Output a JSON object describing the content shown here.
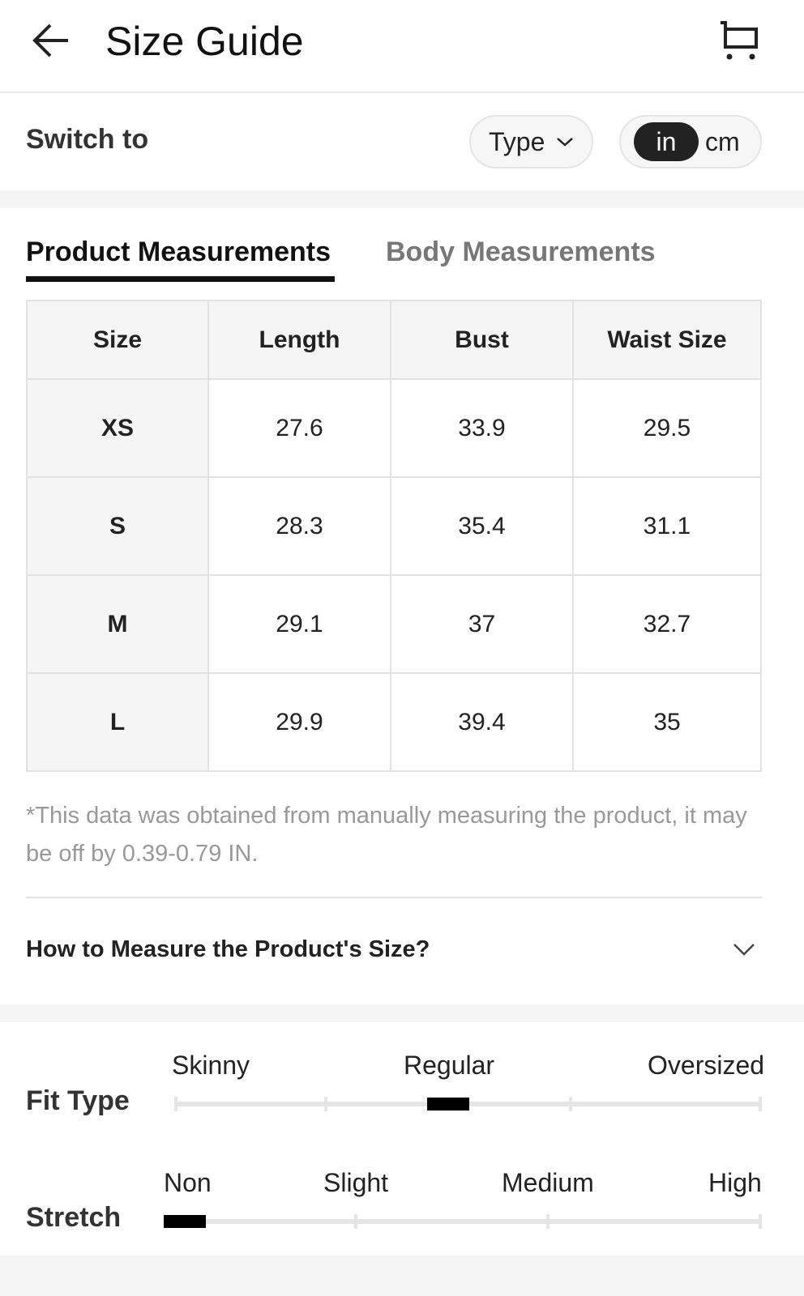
{
  "header": {
    "title": "Size Guide",
    "back_icon": "arrow-left-icon",
    "cart_icon": "cart-icon"
  },
  "switch": {
    "label": "Switch to",
    "type_label": "Type",
    "units": [
      "in",
      "cm"
    ],
    "selected_unit": "in"
  },
  "tabs": [
    {
      "label": "Product Measurements",
      "active": true
    },
    {
      "label": "Body Measurements",
      "active": false
    }
  ],
  "table": {
    "columns": [
      "Size",
      "Length",
      "Bust",
      "Waist Size"
    ],
    "rows": [
      [
        "XS",
        "27.6",
        "33.9",
        "29.5"
      ],
      [
        "S",
        "28.3",
        "35.4",
        "31.1"
      ],
      [
        "M",
        "29.1",
        "37",
        "32.7"
      ],
      [
        "L",
        "29.9",
        "39.4",
        "35"
      ]
    ]
  },
  "note": "*This data was obtained from manually measuring the product, it may be off by 0.39-0.79 IN.",
  "accordion": {
    "label": "How to Measure the Product's Size?"
  },
  "fit_type": {
    "label": "Fit Type",
    "options": [
      "Skinny",
      "Regular",
      "Oversized"
    ],
    "selected": "Regular"
  },
  "stretch": {
    "label": "Stretch",
    "options": [
      "Non",
      "Slight",
      "Medium",
      "High"
    ],
    "selected": "Non"
  }
}
